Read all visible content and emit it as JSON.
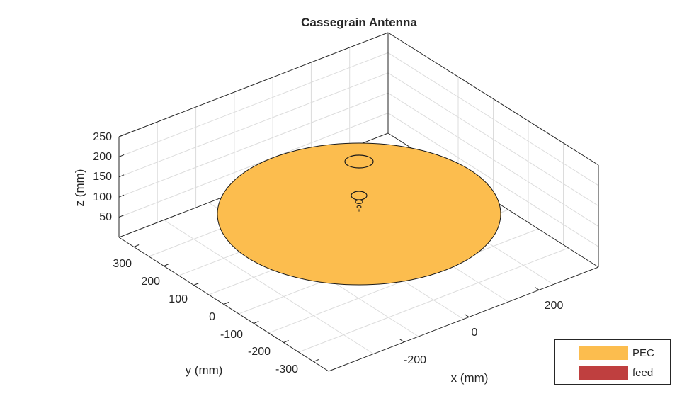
{
  "chart_data": {
    "type": "3d-surface",
    "title": "Cassegrain Antenna",
    "xlabel": "x (mm)",
    "ylabel": "y (mm)",
    "zlabel": "z (mm)",
    "xlim": [
      -300,
      300
    ],
    "ylim": [
      -350,
      350
    ],
    "zlim": [
      0,
      250
    ],
    "x_ticks": [
      "-200",
      "0",
      "200"
    ],
    "y_ticks": [
      "300",
      "200",
      "100",
      "0",
      "-100",
      "-200",
      "-300"
    ],
    "z_ticks": [
      "250",
      "200",
      "150",
      "100",
      "50"
    ],
    "grid": true,
    "legend_position": "bottom-right",
    "legend": [
      {
        "name": "PEC",
        "color": "#fcbd4e"
      },
      {
        "name": "feed",
        "color": "#bf3f3f"
      }
    ],
    "components": [
      {
        "name": "main reflector",
        "material": "PEC"
      },
      {
        "name": "subreflector",
        "material": "PEC"
      },
      {
        "name": "feed horn",
        "material": "PEC"
      }
    ]
  }
}
